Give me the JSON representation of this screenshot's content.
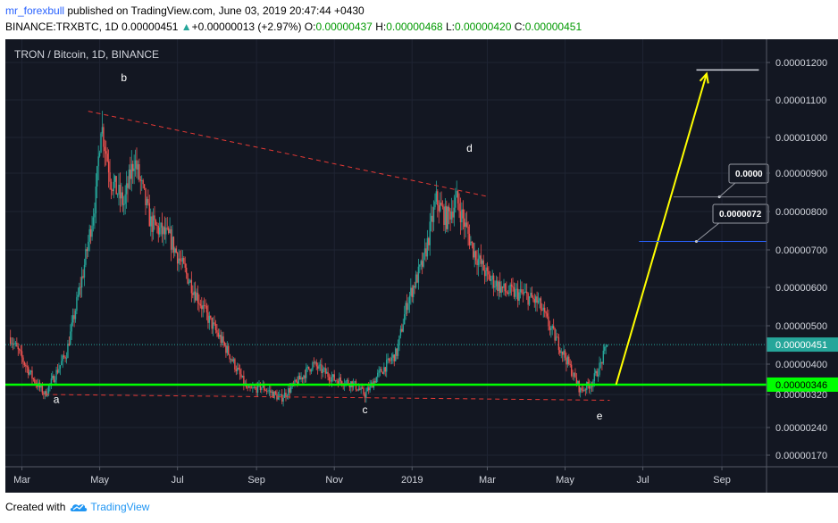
{
  "header": {
    "author": "mr_forexbull",
    "published": " published on TradingView.com, June 03, 2019 20:47:44 +0430",
    "symbol": "BINANCE:TRXBTC, 1D",
    "price": "0.00000451",
    "change": "+0.00000013 (+2.97%)",
    "o_label": "O:",
    "o": "0.00000437",
    "h_label": "H:",
    "h": "0.00000468",
    "l_label": "L:",
    "l": "0.00000420",
    "c_label": "C:",
    "c": "0.00000451"
  },
  "footer": {
    "created_with": "Created with",
    "brand": "TradingView"
  },
  "colors": {
    "background": "#131722",
    "up": "#26a69a",
    "down": "#ef5350",
    "support": "#00ff00",
    "arrow": "#ffff00",
    "trend": "#e53935"
  },
  "chart_data": {
    "type": "candlestick",
    "title": "TRON / Bitcoin, 1D, BINANCE",
    "x_ticks": [
      "Mar",
      "May",
      "Jul",
      "Sep",
      "Nov",
      "2019",
      "Mar",
      "May",
      "Jul",
      "Sep"
    ],
    "y_ticks": [
      "0.00001200",
      "0.00001100",
      "0.00001000",
      "0.00000900",
      "0.00000800",
      "0.00000700",
      "0.00000600",
      "0.00000500",
      "0.00000400",
      "0.00000320",
      "0.00000240",
      "0.00000170"
    ],
    "y_ticks_num": [
      1200,
      1100,
      1000,
      900,
      800,
      700,
      600,
      500,
      400,
      320,
      240,
      170
    ],
    "price_unit": "1e-8 BTC",
    "anchors": [
      [
        "2018-02-20",
        470
      ],
      [
        "2018-03-10",
        360
      ],
      [
        "2018-03-19",
        320
      ],
      [
        "2018-04-05",
        430
      ],
      [
        "2018-04-18",
        640
      ],
      [
        "2018-04-28",
        840
      ],
      [
        "2018-05-02",
        1040
      ],
      [
        "2018-05-10",
        880
      ],
      [
        "2018-05-20",
        820
      ],
      [
        "2018-05-28",
        940
      ],
      [
        "2018-06-10",
        770
      ],
      [
        "2018-06-25",
        730
      ],
      [
        "2018-07-10",
        620
      ],
      [
        "2018-07-25",
        520
      ],
      [
        "2018-08-10",
        430
      ],
      [
        "2018-08-25",
        330
      ],
      [
        "2018-09-05",
        340
      ],
      [
        "2018-09-20",
        310
      ],
      [
        "2018-10-05",
        360
      ],
      [
        "2018-10-15",
        400
      ],
      [
        "2018-11-01",
        360
      ],
      [
        "2018-11-15",
        350
      ],
      [
        "2018-11-25",
        320
      ],
      [
        "2018-12-05",
        370
      ],
      [
        "2018-12-20",
        430
      ],
      [
        "2018-12-28",
        560
      ],
      [
        "2019-01-10",
        670
      ],
      [
        "2019-01-20",
        830
      ],
      [
        "2019-01-28",
        780
      ],
      [
        "2019-02-05",
        830
      ],
      [
        "2019-02-18",
        700
      ],
      [
        "2019-03-01",
        630
      ],
      [
        "2019-03-15",
        590
      ],
      [
        "2019-03-30",
        580
      ],
      [
        "2019-04-10",
        560
      ],
      [
        "2019-04-20",
        490
      ],
      [
        "2019-05-01",
        420
      ],
      [
        "2019-05-13",
        330
      ],
      [
        "2019-05-22",
        350
      ],
      [
        "2019-05-29",
        400
      ],
      [
        "2019-06-03",
        451
      ]
    ],
    "last_price": "0.00000451",
    "last_price_num": 451,
    "support_label": "0.00000346",
    "support_num": 346,
    "target_num": 1180,
    "callouts": [
      {
        "label": "0.0000",
        "value": 838,
        "date": "2019-08-30"
      },
      {
        "label": "0.0000072",
        "value": 722,
        "date": "2019-08-12"
      }
    ],
    "wave_labels": [
      {
        "text": "a",
        "date": "2018-03-28",
        "value": 300
      },
      {
        "text": "b",
        "date": "2018-05-20",
        "value": 1150
      },
      {
        "text": "c",
        "date": "2018-11-25",
        "value": 275
      },
      {
        "text": "d",
        "date": "2019-02-15",
        "value": 960
      },
      {
        "text": "e",
        "date": "2019-05-28",
        "value": 260
      }
    ],
    "trend_upper": [
      [
        "2018-04-22",
        1070
      ],
      [
        "2019-02-28",
        840
      ]
    ],
    "trend_lower": [
      [
        "2018-03-19",
        320
      ],
      [
        "2019-06-05",
        306
      ]
    ],
    "projection": [
      [
        "2019-06-10",
        346
      ],
      [
        "2019-08-20",
        1170
      ]
    ],
    "target_line": [
      [
        "2019-08-12",
        1180
      ],
      [
        "2019-09-30",
        1180
      ]
    ]
  }
}
